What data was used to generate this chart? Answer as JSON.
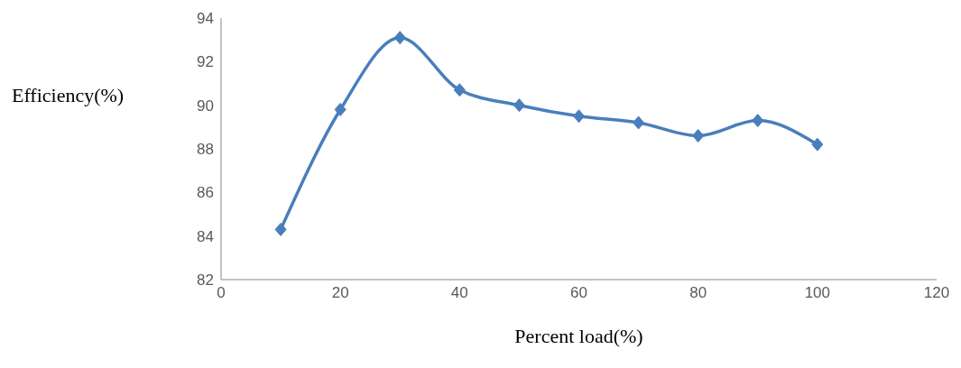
{
  "chart_data": {
    "type": "line",
    "xlabel": "Percent load(%)",
    "ylabel": "Efficiency(%)",
    "x": [
      10,
      20,
      30,
      40,
      50,
      60,
      70,
      80,
      90,
      100
    ],
    "series": [
      {
        "color": "#4a7ebb",
        "values": [
          84.3,
          89.8,
          93.1,
          90.7,
          90.0,
          89.5,
          89.2,
          88.6,
          89.3,
          88.2
        ]
      }
    ],
    "xlim": [
      0,
      120
    ],
    "xticks": [
      0,
      20,
      40,
      60,
      80,
      100,
      120
    ],
    "ylim": [
      82,
      94
    ],
    "yticks": [
      82,
      84,
      86,
      88,
      90,
      92,
      94
    ],
    "grid": false,
    "legend": false,
    "marker": "diamond",
    "line_style": "solid"
  }
}
